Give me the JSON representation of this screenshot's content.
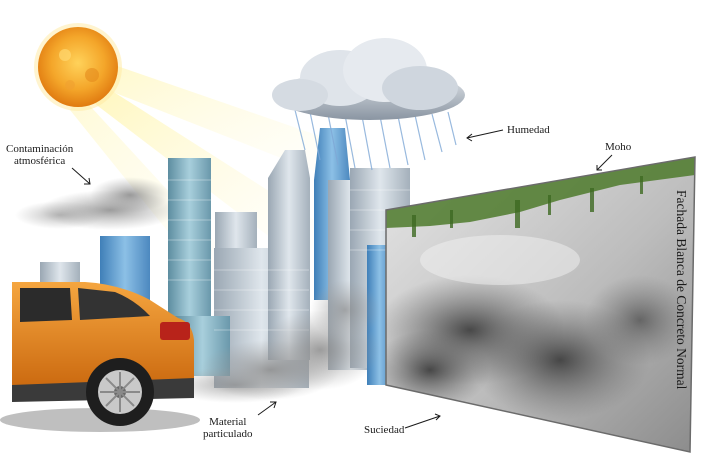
{
  "labels": {
    "contaminacion_line1": "Contaminación",
    "contaminacion_line2": "atmosférica",
    "humedad": "Humedad",
    "moho": "Moho",
    "material_line1": "Material",
    "material_line2": "particulado",
    "suciedad": "Suciedad",
    "fachada": "Fachada Blanca de Concreto Normal"
  },
  "icons": [
    "sun-icon",
    "rain-cloud-icon",
    "car-icon",
    "city-skyline",
    "pollution-smoke",
    "concrete-wall-panel"
  ],
  "colors": {
    "sun": "#f4a62a",
    "sun_rays": "#fff3b0",
    "car_body": "#e07f16",
    "building_blue": "#5b9bd0",
    "smoke": "#7f7f7f",
    "mold_green": "#4d7a2c",
    "wall": "#d9d9d9",
    "dirt": "#5a5a5a"
  }
}
